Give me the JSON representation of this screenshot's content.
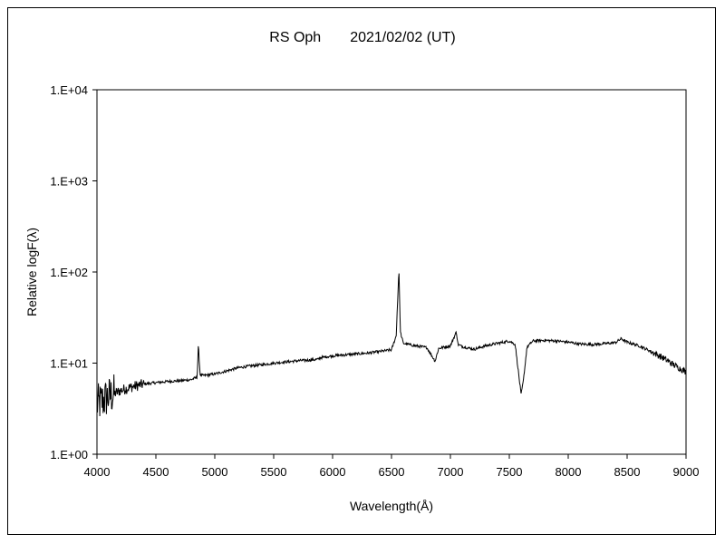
{
  "chart_data": {
    "type": "line",
    "title": "RS Oph　　2021/02/02 (UT)",
    "xlabel": "Wavelength(Å)",
    "ylabel": "Relative logF(λ)",
    "xlim": [
      4000,
      9000
    ],
    "ylim": [
      1,
      10000
    ],
    "yscale": "log",
    "grid": false,
    "legend": "none",
    "x_ticks": [
      4000,
      4500,
      5000,
      5500,
      6000,
      6500,
      7000,
      7500,
      8000,
      8500,
      9000
    ],
    "x_tick_labels": [
      "4000",
      "4500",
      "5000",
      "5500",
      "6000",
      "6500",
      "7000",
      "7500",
      "8000",
      "8500",
      "9000"
    ],
    "y_ticks": [
      1,
      10,
      100,
      1000,
      10000
    ],
    "y_tick_labels": [
      "1.E+00",
      "1.E+01",
      "1.E+02",
      "1.E+03",
      "1.E+04"
    ],
    "line_color": "#000000",
    "series": [
      {
        "x": [
          4000,
          4100,
          4200,
          4300,
          4400,
          4500,
          4600,
          4700,
          4800,
          4850,
          4861,
          4875,
          4900,
          5000,
          5100,
          5200,
          5300,
          5400,
          5500,
          5600,
          5700,
          5800,
          5876,
          5900,
          6000,
          6100,
          6200,
          6300,
          6400,
          6500,
          6540,
          6563,
          6575,
          6600,
          6700,
          6800,
          6870,
          6900,
          7000,
          7050,
          7065,
          7100,
          7200,
          7300,
          7400,
          7500,
          7550,
          7600,
          7620,
          7650,
          7700,
          7800,
          7900,
          8000,
          8100,
          8200,
          8300,
          8400,
          8450,
          8500,
          8600,
          8700,
          8800,
          8900,
          9000
        ],
        "y": [
          3.5,
          4.3,
          5.0,
          5.5,
          5.9,
          6.1,
          6.3,
          6.4,
          6.6,
          7.0,
          16.0,
          7.5,
          7.3,
          7.6,
          8.2,
          8.9,
          9.3,
          9.6,
          10.0,
          10.3,
          10.6,
          10.8,
          11.0,
          11.5,
          12.0,
          12.3,
          12.6,
          12.9,
          13.4,
          14.0,
          20.0,
          110.0,
          22.0,
          16.5,
          15.5,
          14.8,
          10.5,
          14.5,
          15.5,
          22.0,
          16.0,
          15.2,
          14.2,
          15.5,
          16.5,
          17.5,
          16.0,
          4.5,
          6.5,
          15.0,
          17.5,
          17.8,
          17.5,
          17.0,
          16.2,
          16.0,
          16.3,
          16.8,
          18.5,
          17.0,
          15.5,
          13.5,
          11.5,
          9.5,
          8.0
        ]
      }
    ]
  }
}
